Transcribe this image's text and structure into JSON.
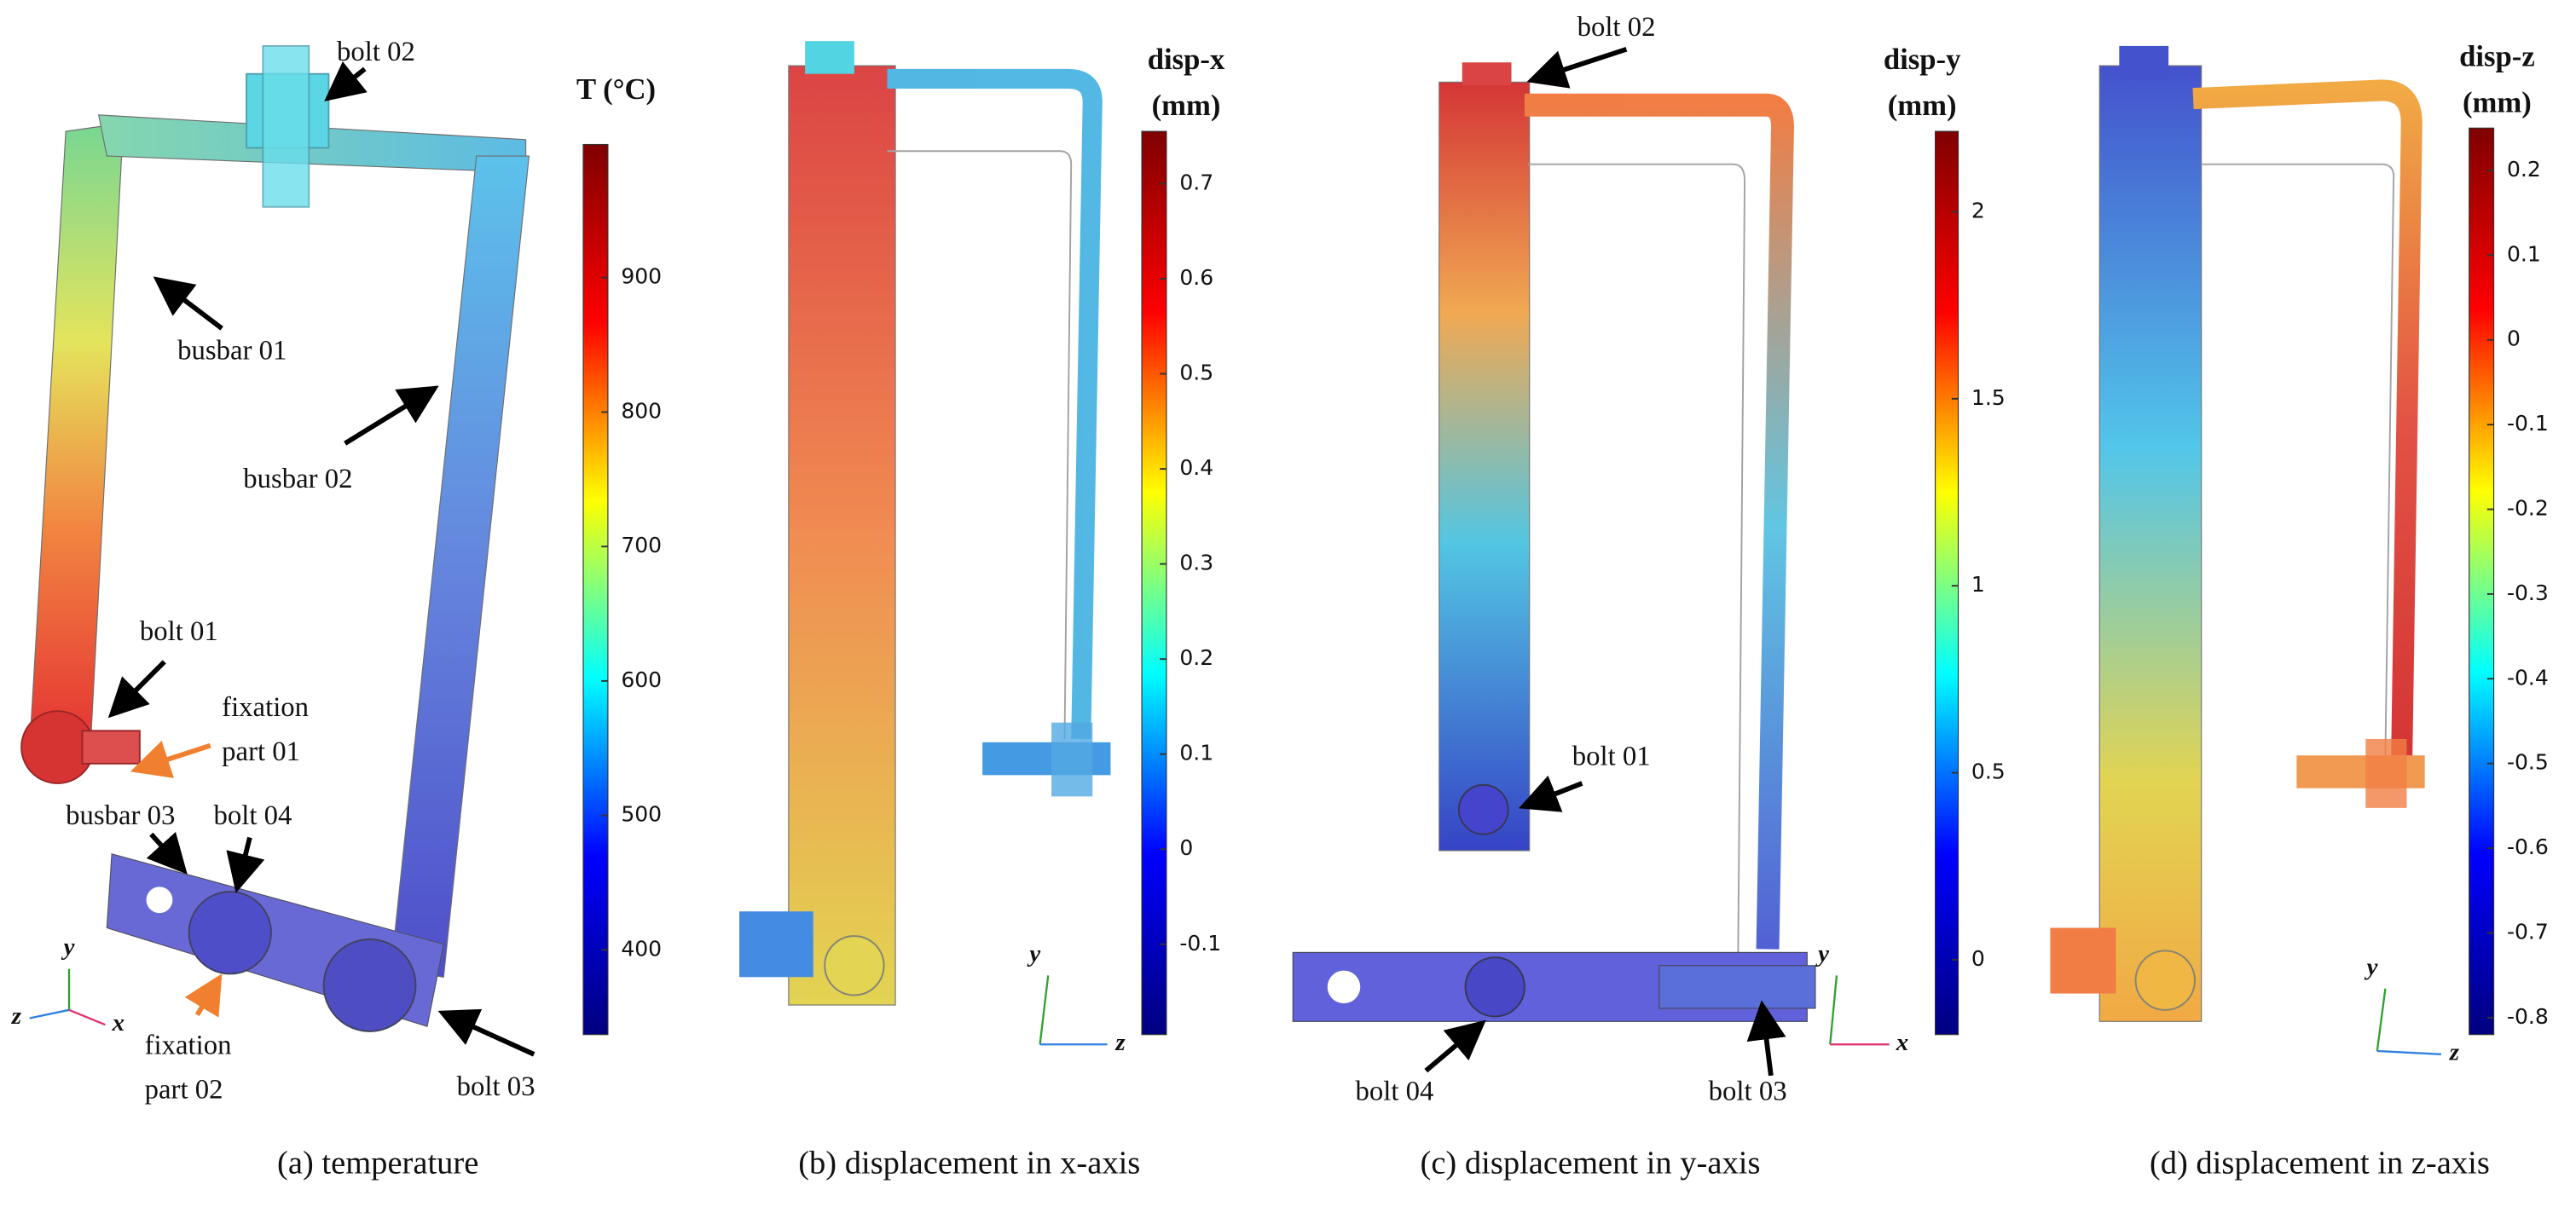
{
  "panels": [
    {
      "caption": "(a) temperature",
      "colorbar": {
        "title": [
          "T (°C)"
        ],
        "colormap": "jet",
        "lim": [
          337,
          999
        ],
        "ticks": [
          400,
          500,
          600,
          700,
          800,
          900
        ]
      },
      "annotations": [
        "bolt 02",
        "busbar 01",
        "busbar 02",
        "bolt 01",
        [
          "fixation",
          "part 01"
        ],
        "busbar 03",
        "bolt 04",
        [
          "fixation",
          "part 02"
        ],
        "bolt 03"
      ],
      "axes": [
        "y",
        "z",
        "x"
      ]
    },
    {
      "caption": "(b) displacement in x-axis",
      "colorbar": {
        "title": [
          "disp-x",
          "(mm)"
        ],
        "colormap": "jet",
        "lim": [
          -0.195,
          0.755
        ],
        "ticks": [
          -0.1,
          0,
          0.1,
          0.2,
          0.3,
          0.4,
          0.5,
          0.6,
          0.7
        ]
      },
      "annotations": [],
      "axes": [
        "y",
        "z"
      ]
    },
    {
      "caption": "(c) displacement in y-axis",
      "colorbar": {
        "title": [
          "disp-y",
          "(mm)"
        ],
        "colormap": "jet",
        "lim": [
          -0.2,
          2.215
        ],
        "ticks": [
          0,
          0.5,
          1,
          1.5,
          2
        ]
      },
      "annotations": [
        "bolt 02",
        "bolt 01",
        "bolt 04",
        "bolt 03"
      ],
      "axes": [
        "y",
        "x"
      ]
    },
    {
      "caption": "(d) displacement in z-axis",
      "colorbar": {
        "title": [
          "disp-z",
          "(mm)"
        ],
        "colormap": "jet",
        "lim": [
          -0.82,
          0.25
        ],
        "ticks": [
          -0.8,
          -0.7,
          -0.6,
          -0.5,
          -0.4,
          -0.3,
          -0.2,
          -0.1,
          0,
          0.1,
          0.2
        ]
      },
      "annotations": [],
      "axes": [
        "y",
        "z"
      ]
    }
  ]
}
